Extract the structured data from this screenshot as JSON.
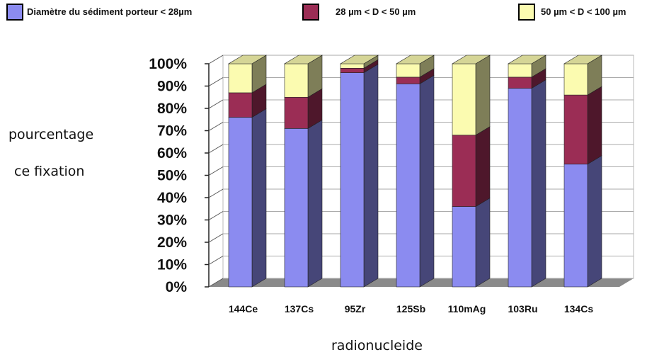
{
  "chart_data": {
    "type": "bar",
    "stacked": true,
    "three_d": true,
    "categories": [
      "144Ce",
      "137Cs",
      "95Zr",
      "125Sb",
      "110mAg",
      "103Ru",
      "134Cs"
    ],
    "series": [
      {
        "name": "Diamètre du sédiment porteur < 28µm",
        "color": "#8b8bf0",
        "values": [
          76,
          71,
          96,
          91,
          36,
          89,
          55
        ]
      },
      {
        "name": "28 µm < D < 50 µm",
        "color": "#9b2d55",
        "values": [
          11,
          14,
          2,
          3,
          32,
          5,
          31
        ]
      },
      {
        "name": "50 µm < D < 100 µm",
        "color": "#fbfbb0",
        "values": [
          13,
          15,
          2,
          6,
          32,
          6,
          14
        ]
      }
    ],
    "ylabel_lines": [
      "pourcentage",
      "ce fixation"
    ],
    "xlabel": "radionucleide",
    "ylim": [
      0,
      100
    ],
    "yticks": [
      "0%",
      "10%",
      "20%",
      "30%",
      "40%",
      "50%",
      "60%",
      "70%",
      "80%",
      "90%",
      "100%"
    ],
    "grid": true,
    "legend_position": "top"
  }
}
